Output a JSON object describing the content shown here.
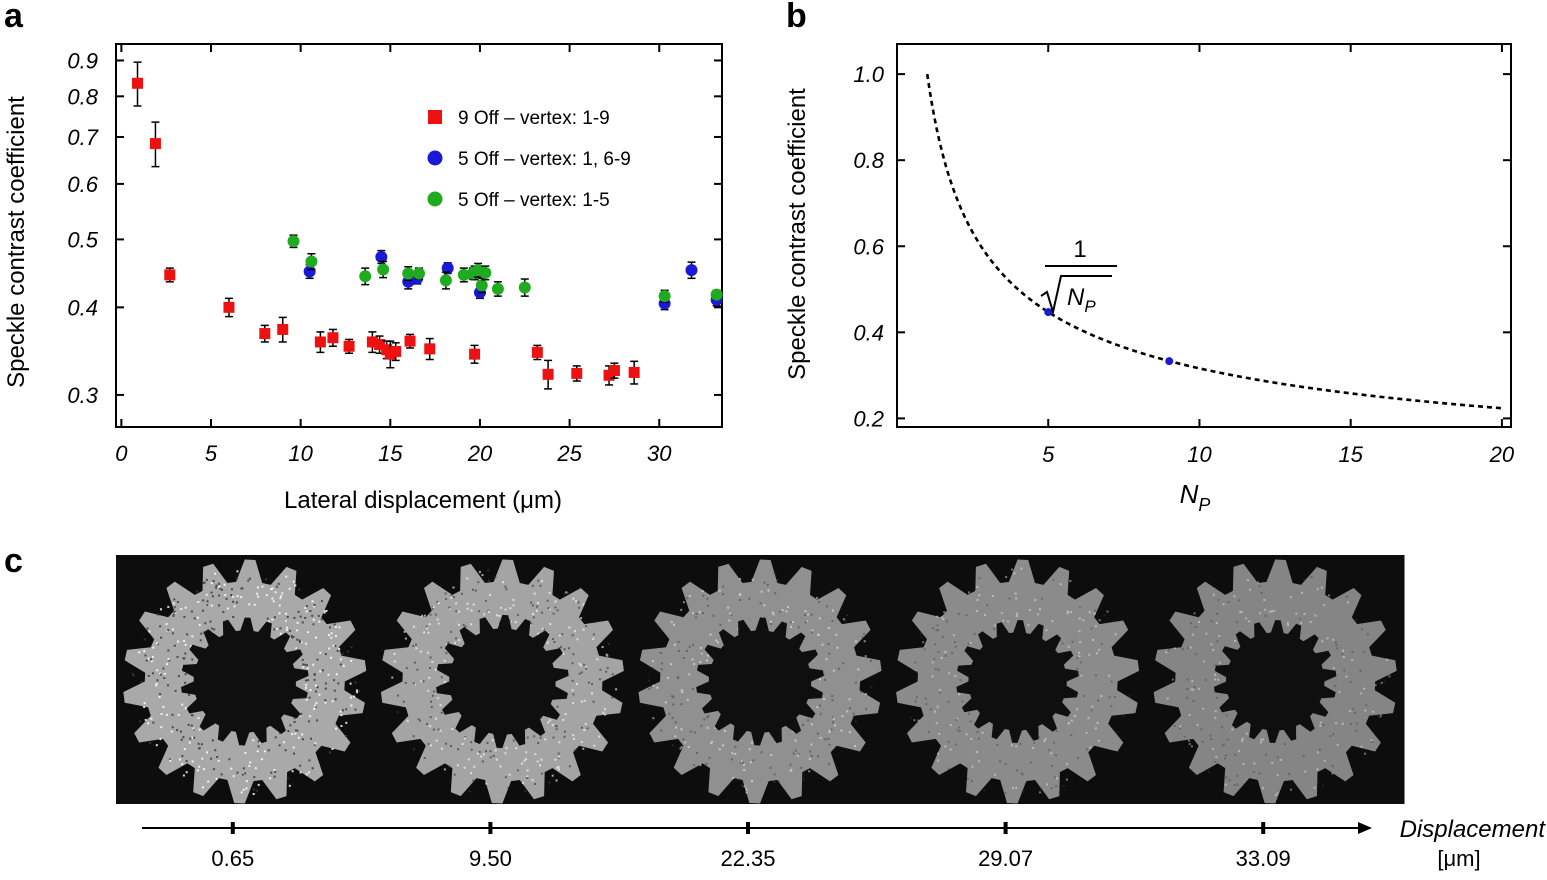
{
  "panels": {
    "a": "a",
    "b": "b",
    "c": "c"
  },
  "chart_data": [
    {
      "id": "a",
      "type": "scatter",
      "xlabel": "Lateral displacement (μm)",
      "ylabel": "Speckle contrast coefficient",
      "xlim": [
        -0.3,
        33.5
      ],
      "ylim": [
        0.27,
        0.95
      ],
      "yscale": "log",
      "xticks": [
        0,
        5,
        10,
        15,
        20,
        25,
        30
      ],
      "yticks": [
        0.3,
        0.4,
        0.5,
        0.6,
        0.7,
        0.8,
        0.9
      ],
      "legend_position": "upper-right",
      "series": [
        {
          "name": "9 Off – vertex: 1-9",
          "marker": "square",
          "color": "#ee1111",
          "points": [
            [
              0.9,
              0.835,
              0.06
            ],
            [
              1.9,
              0.685,
              0.05
            ],
            [
              2.7,
              0.445,
              0.01
            ],
            [
              6.0,
              0.4,
              0.012
            ],
            [
              8.0,
              0.367,
              0.01
            ],
            [
              9.0,
              0.372,
              0.015
            ],
            [
              11.1,
              0.357,
              0.012
            ],
            [
              11.8,
              0.362,
              0.01
            ],
            [
              12.7,
              0.352,
              0.008
            ],
            [
              14.0,
              0.357,
              0.012
            ],
            [
              14.4,
              0.354,
              0.01
            ],
            [
              14.8,
              0.348,
              0.01
            ],
            [
              15.0,
              0.343,
              0.015
            ],
            [
              15.3,
              0.346,
              0.01
            ],
            [
              16.1,
              0.358,
              0.008
            ],
            [
              17.2,
              0.349,
              0.012
            ],
            [
              19.7,
              0.343,
              0.01
            ],
            [
              23.2,
              0.345,
              0.008
            ],
            [
              23.8,
              0.321,
              0.015
            ],
            [
              25.4,
              0.322,
              0.008
            ],
            [
              27.2,
              0.32,
              0.01
            ],
            [
              27.5,
              0.325,
              0.008
            ],
            [
              28.6,
              0.323,
              0.012
            ]
          ]
        },
        {
          "name": "5 Off – vertex: 1, 6-9",
          "marker": "circle",
          "color": "#1a1ad6",
          "points": [
            [
              10.5,
              0.45,
              0.01
            ],
            [
              14.5,
              0.472,
              0.01
            ],
            [
              16.0,
              0.435,
              0.01
            ],
            [
              16.5,
              0.44,
              0.008
            ],
            [
              18.2,
              0.455,
              0.008
            ],
            [
              19.7,
              0.448,
              0.01
            ],
            [
              20.0,
              0.42,
              0.008
            ],
            [
              30.3,
              0.405,
              0.008
            ],
            [
              31.8,
              0.452,
              0.012
            ],
            [
              33.2,
              0.41,
              0.008
            ]
          ]
        },
        {
          "name": "5 Off – vertex: 1-5",
          "marker": "circle",
          "color": "#1faa1f",
          "points": [
            [
              9.6,
              0.497,
              0.01
            ],
            [
              10.6,
              0.465,
              0.012
            ],
            [
              13.6,
              0.443,
              0.012
            ],
            [
              14.6,
              0.453,
              0.012
            ],
            [
              16.0,
              0.447,
              0.01
            ],
            [
              16.6,
              0.447,
              0.008
            ],
            [
              18.1,
              0.437,
              0.012
            ],
            [
              19.1,
              0.445,
              0.01
            ],
            [
              19.6,
              0.447,
              0.008
            ],
            [
              19.9,
              0.452,
              0.01
            ],
            [
              20.1,
              0.43,
              0.01
            ],
            [
              20.3,
              0.448,
              0.01
            ],
            [
              21.0,
              0.425,
              0.01
            ],
            [
              22.5,
              0.427,
              0.012
            ],
            [
              30.3,
              0.415,
              0.008
            ],
            [
              33.2,
              0.417,
              0.006
            ]
          ]
        }
      ]
    },
    {
      "id": "b",
      "type": "line",
      "xlabel": "N_P",
      "ylabel": "Speckle contrast coefficient",
      "xlim": [
        0,
        20.3
      ],
      "ylim": [
        0.18,
        1.07
      ],
      "xticks": [
        5,
        10,
        15,
        20
      ],
      "yticks": [
        0.2,
        0.4,
        0.6,
        0.8,
        1.0
      ],
      "ytick_labels": [
        "0.2",
        "0.4",
        "0.6",
        "0.8",
        "1.0"
      ],
      "curve": {
        "function": "1/sqrt(N_P)",
        "x_range": [
          1,
          20
        ],
        "style": "dashed",
        "annotation": {
          "numerator": "1",
          "denominator": "N",
          "subscript": "P"
        }
      },
      "points": [
        {
          "x": 5,
          "y": 0.447,
          "color": "#1a1ad6"
        },
        {
          "x": 9,
          "y": 0.333,
          "color": "#1a1ad6"
        }
      ]
    }
  ],
  "panel_c": {
    "axis_label": "Displacement",
    "unit": "[μm]",
    "tick_labels": [
      "0.65",
      "9.50",
      "22.35",
      "29.07",
      "33.09"
    ],
    "images": [
      {
        "label": "0.65",
        "brightness": 0.82,
        "hole_ratio": 0.5,
        "noise": 0.85
      },
      {
        "label": "9.50",
        "brightness": 0.8,
        "hole_ratio": 0.52,
        "noise": 0.65
      },
      {
        "label": "22.35",
        "brightness": 0.72,
        "hole_ratio": 0.5,
        "noise": 0.5
      },
      {
        "label": "29.07",
        "brightness": 0.7,
        "hole_ratio": 0.48,
        "noise": 0.42
      },
      {
        "label": "33.09",
        "brightness": 0.68,
        "hole_ratio": 0.48,
        "noise": 0.4
      }
    ]
  }
}
